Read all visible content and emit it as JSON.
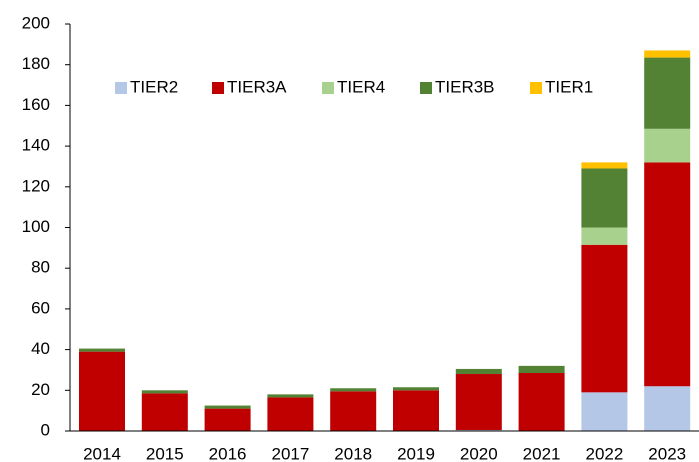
{
  "chart_data": {
    "type": "stacked_bar",
    "categories": [
      "2014",
      "2015",
      "2016",
      "2017",
      "2018",
      "2019",
      "2020",
      "2021",
      "2022",
      "2023"
    ],
    "series": [
      {
        "name": "TIER2",
        "color": "#b4c7e7",
        "values": [
          0,
          0,
          0,
          0,
          0,
          0,
          0.5,
          0,
          19,
          22
        ]
      },
      {
        "name": "TIER3A",
        "color": "#c00000",
        "values": [
          39,
          18.5,
          11,
          16.5,
          19.5,
          20,
          27.5,
          28.5,
          72.5,
          110
        ]
      },
      {
        "name": "TIER4",
        "color": "#a9d18e",
        "values": [
          0,
          0,
          0,
          0,
          0,
          0,
          0,
          0,
          8.5,
          16.5
        ]
      },
      {
        "name": "TIER3B",
        "color": "#548235",
        "values": [
          1.5,
          1.5,
          1.5,
          1.5,
          1.5,
          1.5,
          2.5,
          3.5,
          29,
          35
        ]
      },
      {
        "name": "TIER1",
        "color": "#ffc000",
        "values": [
          0,
          0,
          0,
          0,
          0,
          0,
          0,
          0,
          3,
          3.5
        ]
      }
    ],
    "ylim": [
      0,
      200
    ],
    "yticks": [
      0,
      20,
      40,
      60,
      80,
      100,
      120,
      140,
      160,
      180,
      200
    ],
    "legend": "top-left"
  }
}
